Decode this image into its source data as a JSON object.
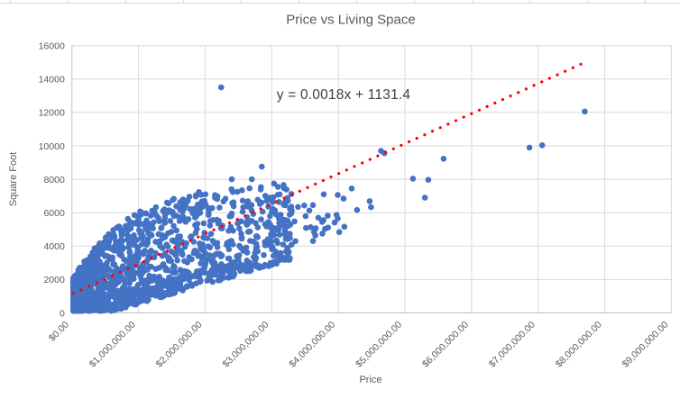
{
  "chart_data": {
    "type": "scatter",
    "title": "Price vs Living Space",
    "xlabel": "Price",
    "ylabel": "Square Foot",
    "xlim": [
      0,
      9000000
    ],
    "ylim": [
      0,
      16000
    ],
    "grid": true,
    "legend": "none",
    "x_tick_values": [
      0,
      1000000,
      2000000,
      3000000,
      4000000,
      5000000,
      6000000,
      7000000,
      8000000,
      9000000
    ],
    "x_tick_labels": [
      "$0.00",
      "$1,000,000.00",
      "$2,000,000.00",
      "$3,000,000.00",
      "$4,000,000.00",
      "$5,000,000.00",
      "$6,000,000.00",
      "$7,000,000.00",
      "$8,000,000.00",
      "$9,000,000.00"
    ],
    "y_tick_values": [
      0,
      2000,
      4000,
      6000,
      8000,
      10000,
      12000,
      14000,
      16000
    ],
    "y_tick_labels": [
      "0",
      "2000",
      "4000",
      "6000",
      "8000",
      "10000",
      "12000",
      "14000",
      "16000"
    ],
    "trendline": {
      "label": "y = 0.0018x + 1131.4",
      "slope": 0.0018,
      "intercept": 1131.4,
      "x_start": 20000,
      "x_end": 7675000,
      "style": "dotted"
    },
    "outlier_points": [
      [
        2240000,
        13500
      ],
      [
        7700000,
        12060
      ],
      [
        7060000,
        10040
      ],
      [
        6870000,
        9900
      ],
      [
        5580000,
        9230
      ],
      [
        4640000,
        9700
      ],
      [
        4690000,
        9560
      ],
      [
        5120000,
        8040
      ],
      [
        5350000,
        7970
      ],
      [
        5300000,
        6900
      ],
      [
        4200000,
        7450
      ],
      [
        4470000,
        6690
      ],
      [
        4490000,
        6330
      ],
      [
        3780000,
        7100
      ],
      [
        3990000,
        7060
      ],
      [
        3700000,
        5700
      ],
      [
        3840000,
        5820
      ],
      [
        2850000,
        8760
      ],
      [
        3660000,
        5060
      ],
      [
        3760000,
        4750
      ],
      [
        3620000,
        4300
      ],
      [
        4090000,
        5160
      ],
      [
        4280000,
        6160
      ],
      [
        2400000,
        8000
      ],
      [
        2700000,
        8000
      ]
    ],
    "dense_cluster": {
      "description": "Approximately 1700 unlabeled listings forming a dense fan from ~$20k to ~$3.6M; square footage spans ~120-2100 sqft near $0 widening to ~1700-7900 sqft near $3M.",
      "count": 1700,
      "seed": 1337,
      "x_min": 20000,
      "x_core_max": 3300000,
      "x_power": 2.4,
      "tail_fraction": 0.025,
      "tail_x_min": 2500000,
      "tail_x_max": 4100000,
      "y_floor": 120,
      "lower_slope_per_million": 1150,
      "lower_intercept": -600,
      "upper_base": 2000,
      "upper_gain": 6000,
      "upper_scale": 900000,
      "y_power": 1.35
    },
    "colors": {
      "marker": "#4472C4",
      "trendline": "#FF0000",
      "gridline": "#D9D9D9",
      "axis_line": "#BFBFBF",
      "tick_text": "#595959",
      "title_text": "#595959",
      "equation_text": "#3F3F3F",
      "background": "#FFFFFF"
    }
  }
}
